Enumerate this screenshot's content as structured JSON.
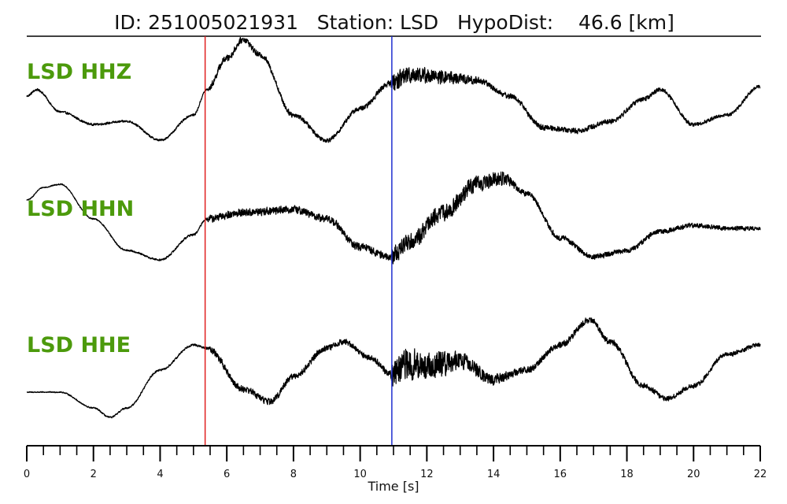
{
  "chart_data": {
    "type": "line",
    "title": "ID: 251005021931   Station: LSD   HypoDist:    46.6 [km]",
    "xlabel": "Time [s]",
    "xlim": [
      0,
      22
    ],
    "x_ticks": [
      0,
      2,
      4,
      6,
      8,
      10,
      12,
      14,
      16,
      18,
      20,
      22
    ],
    "x_minor_step": 0.5,
    "grid": false,
    "p_pick": {
      "time": 5.35,
      "color": "#e02020"
    },
    "s_pick": {
      "time": 10.95,
      "color": "#2030d0"
    },
    "trace_color": "#000000",
    "label_color": "#4c9a0c",
    "series": [
      {
        "name": "LSD HHZ",
        "envelope": [
          [
            0,
            0.1
          ],
          [
            0.3,
            0.2
          ],
          [
            1,
            -0.15
          ],
          [
            2,
            -0.35
          ],
          [
            3,
            -0.3
          ],
          [
            4,
            -0.6
          ],
          [
            5,
            -0.2
          ],
          [
            5.4,
            0.2
          ],
          [
            6,
            0.7
          ],
          [
            6.5,
            1.0
          ],
          [
            7,
            0.75
          ],
          [
            8,
            -0.2
          ],
          [
            9,
            -0.6
          ],
          [
            10,
            -0.1
          ],
          [
            10.9,
            0.3
          ],
          [
            11.5,
            0.45
          ],
          [
            12.5,
            0.4
          ],
          [
            13.5,
            0.35
          ],
          [
            14.5,
            0.1
          ],
          [
            15.5,
            -0.4
          ],
          [
            16.5,
            -0.45
          ],
          [
            17.5,
            -0.3
          ],
          [
            18.5,
            0.05
          ],
          [
            19,
            0.2
          ],
          [
            20,
            -0.35
          ],
          [
            21,
            -0.2
          ],
          [
            22,
            0.25
          ]
        ],
        "noise": [
          [
            0,
            0.02
          ],
          [
            5.35,
            0.02
          ],
          [
            5.6,
            0.06
          ],
          [
            7.5,
            0.05
          ],
          [
            9,
            0.04
          ],
          [
            10.9,
            0.05
          ],
          [
            11,
            0.18
          ],
          [
            12.5,
            0.12
          ],
          [
            14,
            0.05
          ],
          [
            16,
            0.05
          ],
          [
            22,
            0.03
          ]
        ]
      },
      {
        "name": "LSD HHN",
        "envelope": [
          [
            0,
            0.35
          ],
          [
            0.5,
            0.55
          ],
          [
            1,
            0.6
          ],
          [
            2,
            0.05
          ],
          [
            3,
            -0.45
          ],
          [
            4,
            -0.6
          ],
          [
            5,
            -0.2
          ],
          [
            5.4,
            0.05
          ],
          [
            6.5,
            0.15
          ],
          [
            8,
            0.2
          ],
          [
            9,
            0.05
          ],
          [
            10,
            -0.4
          ],
          [
            10.9,
            -0.55
          ],
          [
            11.5,
            -0.3
          ],
          [
            12.5,
            0.15
          ],
          [
            13.5,
            0.6
          ],
          [
            14.3,
            0.7
          ],
          [
            15,
            0.45
          ],
          [
            16,
            -0.25
          ],
          [
            17,
            -0.55
          ],
          [
            18,
            -0.45
          ],
          [
            19,
            -0.15
          ],
          [
            20,
            -0.05
          ],
          [
            21,
            -0.1
          ],
          [
            22,
            -0.1
          ]
        ],
        "noise": [
          [
            0,
            0.01
          ],
          [
            5.35,
            0.02
          ],
          [
            5.5,
            0.07
          ],
          [
            10.9,
            0.07
          ],
          [
            11,
            0.16
          ],
          [
            14,
            0.14
          ],
          [
            15,
            0.05
          ],
          [
            22,
            0.04
          ]
        ]
      },
      {
        "name": "LSD HHE",
        "envelope": [
          [
            0,
            -0.45
          ],
          [
            1,
            -0.45
          ],
          [
            2,
            -0.7
          ],
          [
            2.5,
            -0.85
          ],
          [
            3,
            -0.7
          ],
          [
            4,
            -0.1
          ],
          [
            5,
            0.3
          ],
          [
            5.4,
            0.25
          ],
          [
            6.5,
            -0.4
          ],
          [
            7.3,
            -0.6
          ],
          [
            8,
            -0.2
          ],
          [
            9,
            0.25
          ],
          [
            9.5,
            0.35
          ],
          [
            10.3,
            0.1
          ],
          [
            10.9,
            -0.15
          ],
          [
            11.5,
            0.0
          ],
          [
            12,
            -0.05
          ],
          [
            13,
            0.05
          ],
          [
            14,
            -0.25
          ],
          [
            15,
            -0.1
          ],
          [
            16,
            0.3
          ],
          [
            16.9,
            0.7
          ],
          [
            17.5,
            0.35
          ],
          [
            18.5,
            -0.35
          ],
          [
            19.2,
            -0.55
          ],
          [
            20,
            -0.35
          ],
          [
            21,
            0.15
          ],
          [
            22,
            0.3
          ]
        ],
        "noise": [
          [
            0,
            0.01
          ],
          [
            5.35,
            0.02
          ],
          [
            5.6,
            0.06
          ],
          [
            8,
            0.06
          ],
          [
            10,
            0.05
          ],
          [
            10.9,
            0.06
          ],
          [
            11,
            0.3
          ],
          [
            12,
            0.25
          ],
          [
            13.5,
            0.12
          ],
          [
            15,
            0.06
          ],
          [
            22,
            0.04
          ]
        ]
      }
    ]
  }
}
